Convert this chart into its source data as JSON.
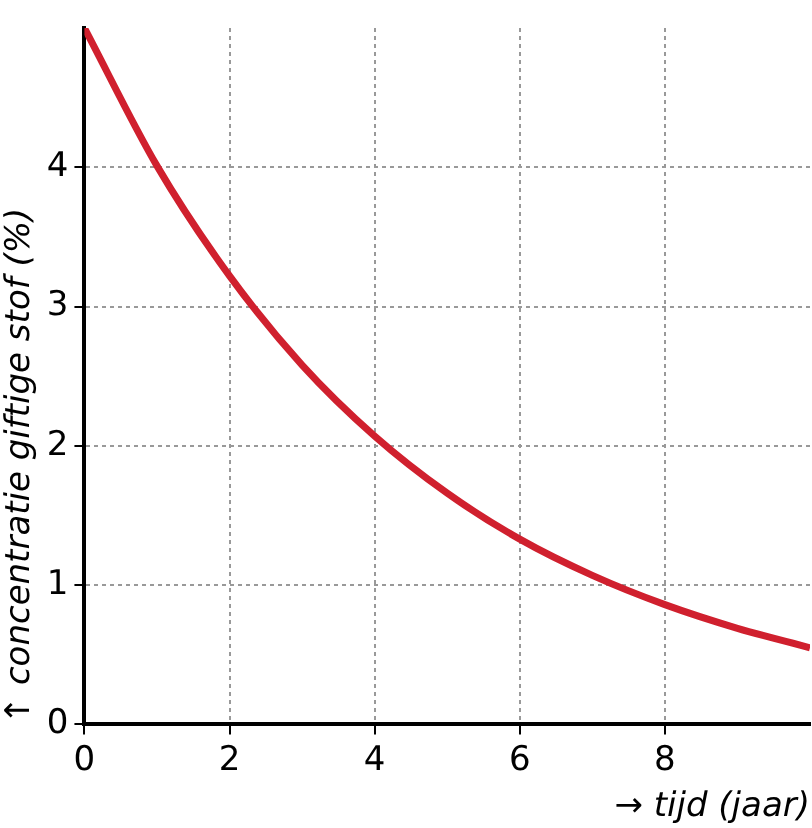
{
  "chart_data": {
    "type": "line",
    "xlabel": "→ tijd (jaar)",
    "ylabel": "↑ concentratie giftige stof (%)",
    "x": [
      0,
      1,
      2,
      3,
      4,
      5,
      6,
      7,
      8,
      9,
      10
    ],
    "series": [
      {
        "color": "#d0202e",
        "values": [
          5.0,
          4.01,
          3.22,
          2.58,
          2.07,
          1.66,
          1.33,
          1.07,
          0.86,
          0.69,
          0.55
        ]
      }
    ],
    "xlim": [
      0,
      10
    ],
    "xticks": [
      0,
      2,
      4,
      6,
      8
    ],
    "ylim": [
      0,
      5
    ],
    "yticks": [
      0,
      1,
      2,
      3,
      4
    ],
    "grid": true,
    "legend": false,
    "marker": "none",
    "line_style": "solid"
  }
}
